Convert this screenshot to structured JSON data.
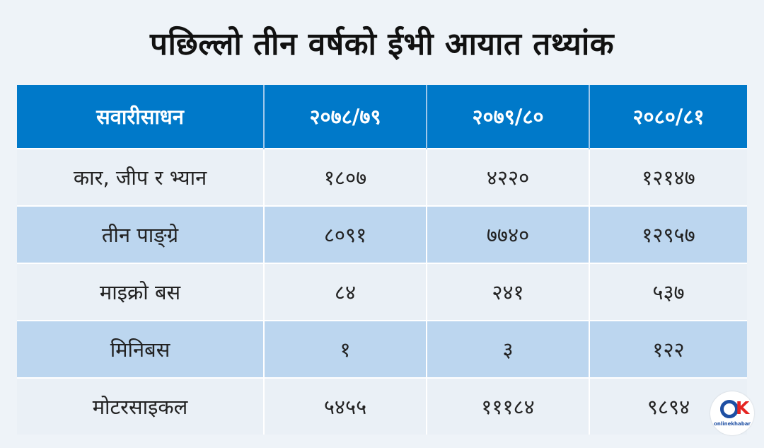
{
  "title": "पछिल्लो तीन वर्षको ईभी आयात तथ्यांक",
  "chart_data": {
    "type": "table",
    "columns": [
      "सवारीसाधन",
      "२०७८/७९",
      "२०७९/८०",
      "२०८०/८१"
    ],
    "rows": [
      [
        "कार, जीप र भ्यान",
        "१८०७",
        "४२२०",
        "१२१४७"
      ],
      [
        "तीन पाङ्ग्रे",
        "८०९१",
        "७७४०",
        "१२९५७"
      ],
      [
        "माइक्रो बस",
        "८४",
        "२४१",
        "५३७"
      ],
      [
        "मिनिबस",
        "१",
        "३",
        "१२२"
      ],
      [
        "मोटरसाइकल",
        "५४५५",
        "१११८४",
        "९८९४"
      ]
    ]
  },
  "logo": {
    "name": "onlinekhabar-logo",
    "k_glyph": "K",
    "brand_text": "onlinekhabar"
  },
  "colors": {
    "header": "#0079c9",
    "row_light": "#eaf0f6",
    "row_dark": "#bcd6ef"
  }
}
